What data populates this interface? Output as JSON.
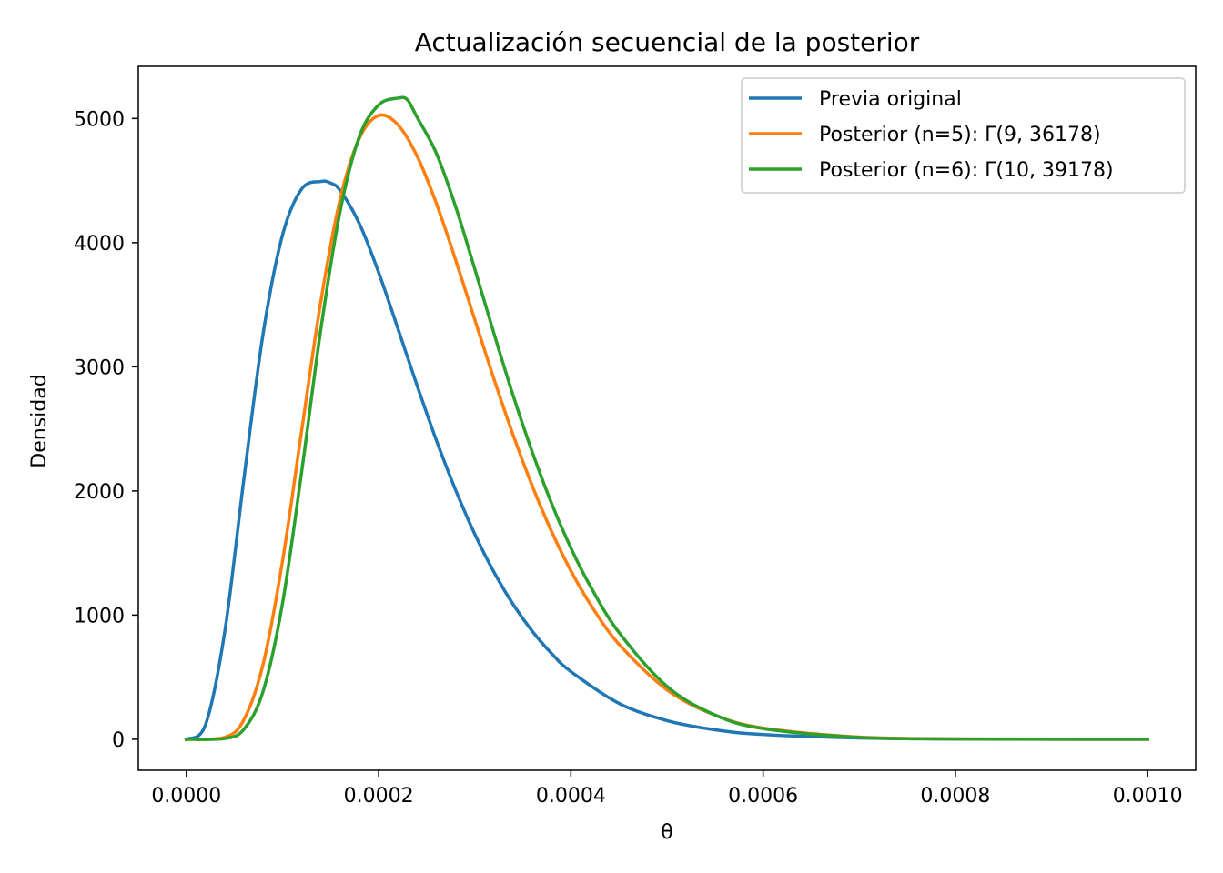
{
  "chart_data": {
    "type": "line",
    "title": "Actualización secuencial de la posterior",
    "xlabel": "θ",
    "ylabel": "Densidad",
    "xlim": [
      -5e-05,
      0.00105
    ],
    "ylim": [
      -250,
      5420
    ],
    "x_ticks": [
      0.0,
      0.0002,
      0.0004,
      0.0006,
      0.0008,
      0.001
    ],
    "x_tick_labels": [
      "0.0000",
      "0.0002",
      "0.0004",
      "0.0006",
      "0.0008",
      "0.0010"
    ],
    "y_ticks": [
      0,
      1000,
      2000,
      3000,
      4000,
      5000
    ],
    "y_tick_labels": [
      "0",
      "1000",
      "2000",
      "3000",
      "4000",
      "5000"
    ],
    "grid": false,
    "legend_position": "top-right",
    "series": [
      {
        "name": "Previa original",
        "color": "#1f77b4",
        "x": [
          0.0,
          2e-05,
          4e-05,
          6e-05,
          8e-05,
          0.0001,
          0.00012,
          0.00014,
          0.00015,
          0.00016,
          0.00018,
          0.0002,
          0.00022,
          0.00024,
          0.00026,
          0.00028,
          0.0003,
          0.00032,
          0.00034,
          0.00036,
          0.00038,
          0.0004,
          0.00045,
          0.0005,
          0.00055,
          0.0006,
          0.0007,
          0.0008,
          0.0009,
          0.001
        ],
        "y": [
          0,
          119,
          869,
          2108,
          3276,
          4061,
          4433,
          4493,
          4480,
          4420,
          4153,
          3760,
          3309,
          2849,
          2409,
          2009,
          1653,
          1346,
          1085,
          868,
          690,
          545,
          289,
          150,
          76,
          38,
          10,
          2,
          0.5,
          0.1
        ]
      },
      {
        "name": "Posterior (n=5): Γ(9, 36178)",
        "color": "#ff7f0e",
        "x": [
          0.0,
          4e-05,
          6e-05,
          8e-05,
          0.0001,
          0.00012,
          0.00014,
          0.00016,
          0.00018,
          0.0002,
          0.00022,
          0.00024,
          0.00026,
          0.00028,
          0.0003,
          0.00032,
          0.00034,
          0.00036,
          0.00038,
          0.0004,
          0.00042,
          0.00045,
          0.0005,
          0.00055,
          0.0006,
          0.0007,
          0.0008,
          0.0009,
          0.001
        ],
        "y": [
          0,
          16,
          160,
          610,
          1434,
          2489,
          3532,
          4352,
          4841,
          5024,
          4950,
          4697,
          4317,
          3863,
          3380,
          2901,
          2449,
          2037,
          1672,
          1357,
          1090,
          765,
          398,
          194,
          90,
          17,
          3,
          0.4,
          0.1
        ]
      },
      {
        "name": "Posterior (n=6): Γ(10, 39178)",
        "color": "#2ca02c",
        "x": [
          0.0,
          4e-05,
          6e-05,
          8e-05,
          0.0001,
          0.00012,
          0.00014,
          0.00016,
          0.00018,
          0.0002,
          0.00022,
          0.00023,
          0.00024,
          0.00026,
          0.00028,
          0.0003,
          0.00032,
          0.00034,
          0.00036,
          0.00038,
          0.0004,
          0.00042,
          0.00045,
          0.0005,
          0.00055,
          0.0006,
          0.0007,
          0.0008,
          0.0009,
          0.001
        ],
        "y": [
          0,
          6,
          82,
          391,
          1094,
          2158,
          3309,
          4255,
          4855,
          5109,
          5164,
          5150,
          5010,
          4720,
          4292,
          3788,
          3268,
          2767,
          2310,
          1898,
          1541,
          1236,
          860,
          425,
          195,
          86,
          15,
          2,
          0.3,
          0.05
        ]
      }
    ]
  }
}
